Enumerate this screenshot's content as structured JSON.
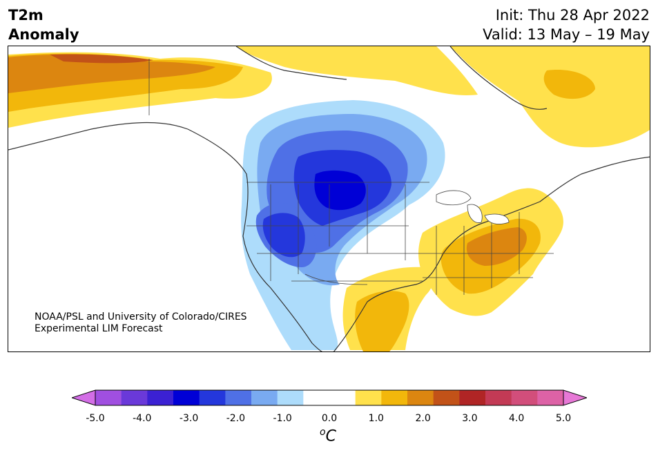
{
  "title": {
    "line1": "T2m",
    "line2": "Anomaly"
  },
  "init_label": "Init: Thu 28 Apr 2022",
  "valid_label": "Valid: 13 May – 19 May",
  "credit": {
    "line1": "NOAA/PSL and University of Colorado/CIRES",
    "line2": "Experimental LIM Forecast"
  },
  "colorbar": {
    "ticks": [
      "-5.0",
      "-4.0",
      "-3.0",
      "-2.0",
      "-1.0",
      "0.0",
      "1.0",
      "2.0",
      "3.0",
      "4.0",
      "5.0"
    ],
    "unit_letter": "C",
    "unit_sup": "o",
    "colors": [
      "#d36ee6",
      "#a04fe0",
      "#6a39d9",
      "#3b21d3",
      "#0000d6",
      "#2437dc",
      "#4f70e6",
      "#79aaf1",
      "#addcfb",
      "#ffffff",
      "#ffffff",
      "#ffe14c",
      "#f2b70b",
      "#dc8610",
      "#c25218",
      "#b02525",
      "#c33a55",
      "#d24e7b",
      "#dd62a6",
      "#e778d6"
    ],
    "extend": "both"
  },
  "region": "North America"
}
